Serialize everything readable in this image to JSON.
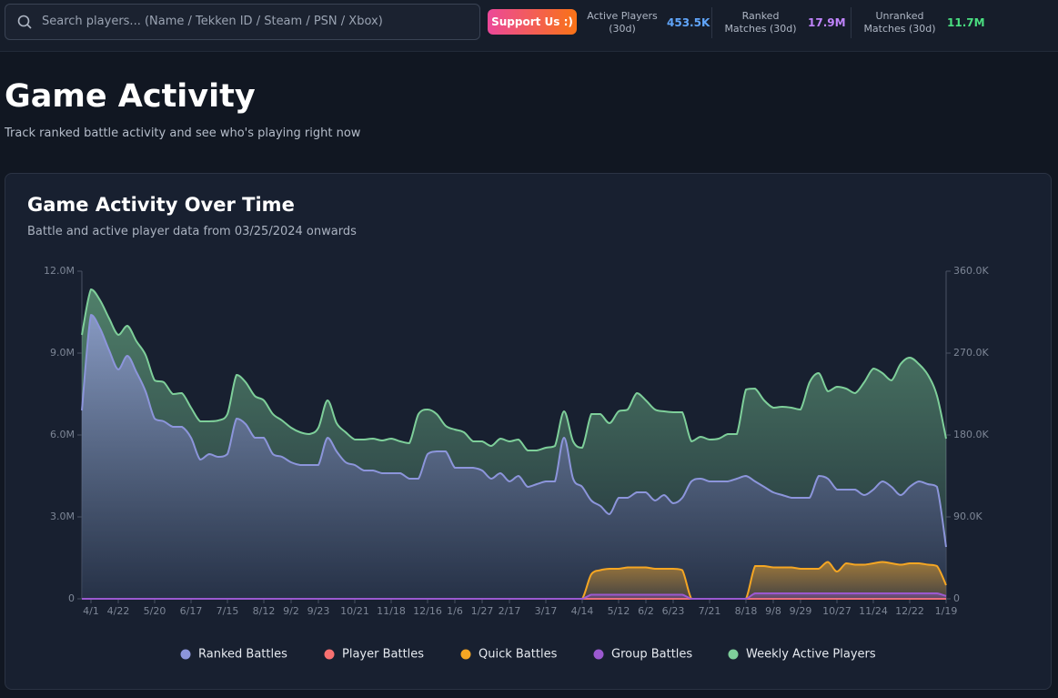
{
  "header": {
    "search_placeholder": "Search players... (Name / Tekken ID / Steam / PSN / Xbox)",
    "support_button": "Support Us :)",
    "stats": [
      {
        "label": "Active Players (30d)",
        "value": "453.5K"
      },
      {
        "label": "Ranked Matches (30d)",
        "value": "17.9M"
      },
      {
        "label": "Unranked Matches (30d)",
        "value": "11.7M"
      }
    ]
  },
  "page": {
    "title": "Game Activity",
    "subtitle": "Track ranked battle activity and see who's playing right now"
  },
  "chart_data": {
    "type": "line",
    "title": "Game Activity Over Time",
    "subtitle": "Battle and active player data from 03/25/2024 onwards",
    "categories": [
      null,
      "4/1",
      null,
      null,
      "4/22",
      null,
      null,
      null,
      "5/20",
      null,
      null,
      null,
      "6/17",
      null,
      null,
      null,
      "7/15",
      null,
      null,
      null,
      "8/12",
      null,
      null,
      "9/2",
      null,
      null,
      "9/23",
      null,
      null,
      null,
      "10/21",
      null,
      null,
      null,
      "11/18",
      null,
      null,
      null,
      "12/16",
      null,
      null,
      "1/6",
      null,
      null,
      "1/27",
      null,
      null,
      "2/17",
      null,
      null,
      null,
      "3/17",
      null,
      null,
      null,
      "4/14",
      null,
      null,
      null,
      "5/12",
      null,
      null,
      "6/2",
      null,
      null,
      "6/23",
      null,
      null,
      null,
      "7/21",
      null,
      null,
      null,
      "8/18",
      null,
      null,
      "9/8",
      null,
      null,
      "9/29",
      null,
      null,
      null,
      "10/27",
      null,
      null,
      null,
      "11/24",
      null,
      null,
      null,
      "12/22",
      null,
      null,
      null,
      "1/19"
    ],
    "ylim": [
      0,
      12000000
    ],
    "yticks": [
      0,
      {
        "value": 3000000,
        "label": "3.0M"
      },
      {
        "value": 6000000,
        "label": "6.0M"
      },
      {
        "value": 9000000,
        "label": "9.0M"
      },
      {
        "value": 12000000,
        "label": "12.0M"
      }
    ],
    "y2lim": [
      0,
      360000
    ],
    "y2ticks": [
      0,
      {
        "value": 90000,
        "label": "90.0K"
      },
      {
        "value": 180000,
        "label": "180.0K"
      },
      {
        "value": 270000,
        "label": "270.0K"
      },
      {
        "value": 360000,
        "label": "360.0K"
      }
    ],
    "grid": false,
    "legend": "bottom",
    "series": [
      {
        "name": "Ranked Battles",
        "color": "#8c95db",
        "values": [
          6900000,
          10400000,
          9900000,
          9100000,
          8400000,
          8900000,
          8300000,
          7600000,
          6600000,
          6500000,
          6300000,
          6300000,
          5900000,
          5100000,
          5300000,
          5200000,
          5300000,
          6600000,
          6400000,
          5900000,
          5900000,
          5300000,
          5200000,
          5000000,
          4900000,
          4900000,
          4900000,
          5900000,
          5400000,
          5000000,
          4900000,
          4700000,
          4700000,
          4600000,
          4600000,
          4600000,
          4400000,
          4400000,
          5300000,
          5400000,
          5400000,
          4800000,
          4800000,
          4800000,
          4700000,
          4400000,
          4600000,
          4300000,
          4500000,
          4100000,
          4200000,
          4300000,
          4300000,
          5900000,
          4400000,
          4100000,
          3600000,
          3400000,
          3100000,
          3700000,
          3700000,
          3900000,
          3900000,
          3600000,
          3800000,
          3500000,
          3700000,
          4300000,
          4400000,
          4300000,
          4300000,
          4300000,
          4400000,
          4500000,
          4300000,
          4100000,
          3900000,
          3800000,
          3700000,
          3700000,
          3700000,
          4500000,
          4400000,
          4000000,
          4000000,
          4000000,
          3800000,
          4000000,
          4300000,
          4100000,
          3800000,
          4100000,
          4300000,
          4200000,
          4100000,
          1900000
        ]
      },
      {
        "name": "Player Battles",
        "color": "#f87171",
        "values": [
          0,
          0,
          0,
          0,
          0,
          0,
          0,
          0,
          0,
          0,
          0,
          0,
          0,
          0,
          0,
          0,
          0,
          0,
          0,
          0,
          0,
          0,
          0,
          0,
          0,
          0,
          0,
          0,
          0,
          0,
          0,
          0,
          0,
          0,
          0,
          0,
          0,
          0,
          0,
          0,
          0,
          0,
          0,
          0,
          0,
          0,
          0,
          0,
          0,
          0,
          0,
          0,
          0,
          0,
          0,
          0,
          0,
          0,
          0,
          0,
          0,
          0,
          0,
          0,
          0,
          0,
          0,
          0,
          0,
          0,
          0,
          0,
          0,
          0,
          0,
          0,
          0,
          0,
          0,
          0,
          0,
          0,
          0,
          0,
          0,
          0,
          0,
          0,
          0,
          0,
          0,
          0,
          0,
          0,
          0,
          0
        ]
      },
      {
        "name": "Quick Battles",
        "color": "#f5a623",
        "values": [
          0,
          0,
          0,
          0,
          0,
          0,
          0,
          0,
          0,
          0,
          0,
          0,
          0,
          0,
          0,
          0,
          0,
          0,
          0,
          0,
          0,
          0,
          0,
          0,
          0,
          0,
          0,
          0,
          0,
          0,
          0,
          0,
          0,
          0,
          0,
          0,
          0,
          0,
          0,
          0,
          0,
          0,
          0,
          0,
          0,
          0,
          0,
          0,
          0,
          0,
          0,
          0,
          0,
          0,
          0,
          0,
          900000,
          1050000,
          1100000,
          1100000,
          1150000,
          1150000,
          1150000,
          1100000,
          1100000,
          1100000,
          1050000,
          0,
          0,
          0,
          0,
          0,
          0,
          0,
          1200000,
          1200000,
          1150000,
          1150000,
          1150000,
          1100000,
          1100000,
          1100000,
          1350000,
          1000000,
          1300000,
          1250000,
          1250000,
          1300000,
          1350000,
          1300000,
          1250000,
          1300000,
          1300000,
          1250000,
          1200000,
          500000
        ]
      },
      {
        "name": "Group Battles",
        "color": "#9b59d0",
        "values": [
          0,
          0,
          0,
          0,
          0,
          0,
          0,
          0,
          0,
          0,
          0,
          0,
          0,
          0,
          0,
          0,
          0,
          0,
          0,
          0,
          0,
          0,
          0,
          0,
          0,
          0,
          0,
          0,
          0,
          0,
          0,
          0,
          0,
          0,
          0,
          0,
          0,
          0,
          0,
          0,
          0,
          0,
          0,
          0,
          0,
          0,
          0,
          0,
          0,
          0,
          0,
          0,
          0,
          0,
          0,
          0,
          150000,
          150000,
          150000,
          150000,
          150000,
          150000,
          150000,
          150000,
          150000,
          150000,
          150000,
          0,
          0,
          0,
          0,
          0,
          0,
          0,
          200000,
          200000,
          200000,
          200000,
          200000,
          200000,
          200000,
          200000,
          200000,
          200000,
          200000,
          200000,
          200000,
          200000,
          200000,
          200000,
          200000,
          200000,
          200000,
          200000,
          200000,
          100000
        ]
      },
      {
        "name": "Weekly Active Players",
        "color": "#7ecf9a",
        "axis": "y2",
        "values": [
          290000,
          340000,
          328000,
          308000,
          290000,
          300000,
          283000,
          268000,
          240000,
          238000,
          225000,
          226000,
          210000,
          195000,
          195000,
          196000,
          203000,
          246000,
          238000,
          223000,
          218000,
          203000,
          196000,
          188000,
          183000,
          181000,
          188000,
          218000,
          193000,
          183000,
          175000,
          175000,
          176000,
          174000,
          176000,
          173000,
          171000,
          203000,
          208000,
          203000,
          190000,
          186000,
          183000,
          173000,
          173000,
          168000,
          176000,
          173000,
          175000,
          163000,
          163000,
          166000,
          168000,
          206000,
          173000,
          166000,
          203000,
          203000,
          193000,
          206000,
          208000,
          226000,
          218000,
          208000,
          206000,
          205000,
          205000,
          173000,
          178000,
          175000,
          176000,
          181000,
          181000,
          230000,
          231000,
          218000,
          210000,
          211000,
          210000,
          208000,
          238000,
          248000,
          228000,
          233000,
          231000,
          226000,
          238000,
          253000,
          248000,
          240000,
          258000,
          265000,
          258000,
          246000,
          223000,
          176000
        ]
      }
    ]
  }
}
